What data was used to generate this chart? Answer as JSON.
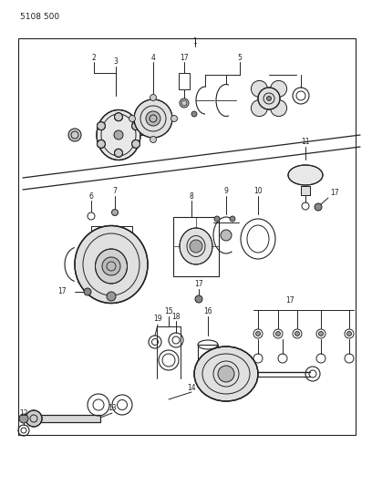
{
  "bg_color": "#ffffff",
  "line_color": "#222222",
  "title_text": "5108 500",
  "fig_width": 4.08,
  "fig_height": 5.33,
  "dpi": 100
}
